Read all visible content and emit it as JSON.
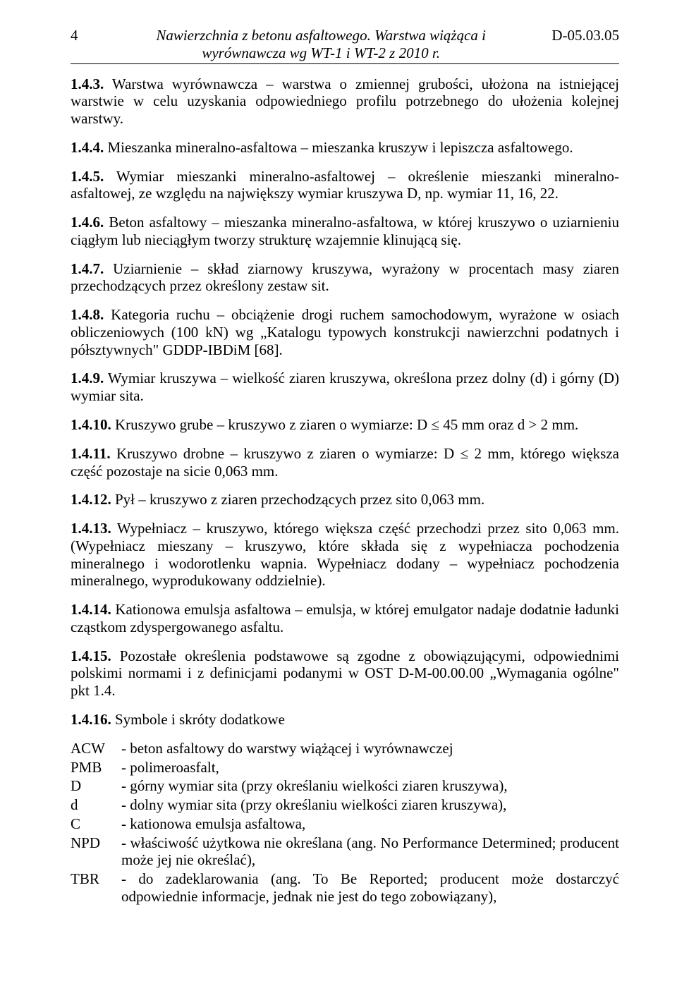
{
  "header": {
    "page_num": "4",
    "title_line1": "Nawierzchnia z betonu asfaltowego. Warstwa wiążąca i",
    "title_line2": "wyrównawcza wg WT-1 i WT-2 z 2010 r.",
    "doc_code": "D-05.03.05"
  },
  "p": {
    "p143": "1.4.3. Warstwa wyrównawcza – warstwa o zmiennej grubości, ułożona na istniejącej warstwie w celu uzyskania odpowiedniego profilu potrzebnego do ułożenia kolejnej warstwy.",
    "p144": "1.4.4. Mieszanka mineralno-asfaltowa – mieszanka kruszyw i lepiszcza asfaltowego.",
    "p145": "1.4.5. Wymiar mieszanki mineralno-asfaltowej – określenie mieszanki mineralno-asfaltowej, ze względu na największy wymiar kruszywa D, np. wymiar 11, 16, 22.",
    "p146": "1.4.6. Beton asfaltowy – mieszanka mineralno-asfaltowa, w której kruszywo o uziarnieniu ciągłym lub nieciągłym tworzy strukturę wzajemnie klinującą się.",
    "p147": "1.4.7. Uziarnienie – skład ziarnowy kruszywa, wyrażony w procentach masy ziaren przechodzących przez określony zestaw sit.",
    "p148": "1.4.8. Kategoria ruchu – obciążenie drogi ruchem samochodowym, wyrażone w osiach obliczeniowych (100 kN) wg „Katalogu typowych konstrukcji nawierzchni podatnych i półsztywnych\" GDDP-IBDiM [68].",
    "p149": "1.4.9. Wymiar kruszywa – wielkość ziaren kruszywa, określona przez dolny (d) i górny (D) wymiar sita.",
    "p1410": "1.4.10. Kruszywo grube – kruszywo z ziaren o wymiarze: D ≤ 45 mm oraz d > 2 mm.",
    "p1411": "1.4.11. Kruszywo drobne – kruszywo z ziaren o wymiarze: D ≤ 2 mm, którego większa część pozostaje na sicie 0,063 mm.",
    "p1412": "1.4.12. Pył – kruszywo z ziaren przechodzących przez sito 0,063 mm.",
    "p1413": "1.4.13. Wypełniacz – kruszywo, którego większa część przechodzi przez sito 0,063 mm. (Wypełniacz mieszany – kruszywo, które składa się z wypełniacza pochodzenia mineralnego i wodorotlenku wapnia. Wypełniacz dodany – wypełniacz pochodzenia mineralnego, wyprodukowany oddzielnie).",
    "p1414": "1.4.14. Kationowa emulsja asfaltowa – emulsja, w której emulgator nadaje dodatnie ładunki cząstkom zdyspergowanego asfaltu.",
    "p1415": "1.4.15. Pozostałe określenia podstawowe są zgodne z obowiązującymi, odpowiednimi polskimi normami i z definicjami podanymi w OST D-M-00.00.00 „Wymagania ogólne\" pkt 1.4.",
    "p1416": "1.4.16. Symbole i skróty dodatkowe"
  },
  "defs": {
    "acw_k": "ACW",
    "acw_v": "- beton asfaltowy do warstwy wiążącej i wyrównawczej",
    "pmb_k": "PMB",
    "pmb_v": "- polimeroasfalt,",
    "D_k": "D",
    "D_v": "- górny wymiar sita (przy określaniu wielkości ziaren kruszywa),",
    "d_k": "d",
    "d_v": "- dolny wymiar sita (przy określaniu wielkości ziaren kruszywa),",
    "c_k": "C",
    "c_v": "- kationowa emulsja asfaltowa,",
    "npd_k": "NPD",
    "npd_v": "- właściwość użytkowa nie określana (ang. No Performance Determined; producent może jej nie określać),",
    "tbr_k": "TBR",
    "tbr_v": "- do zadeklarowania (ang. To Be Reported; producent może dostarczyć odpowiednie informacje, jednak nie jest do tego zobowiązany),"
  }
}
